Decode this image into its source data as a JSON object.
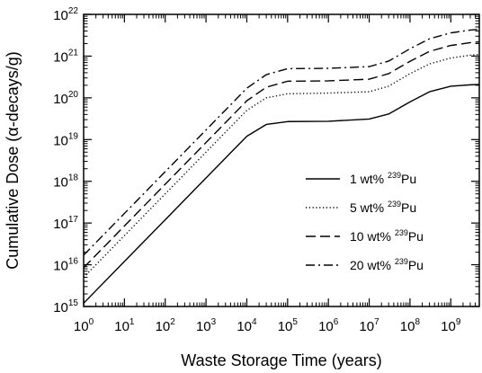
{
  "chart_data": {
    "type": "line",
    "title": "",
    "xlabel": "Waste Storage Time (years)",
    "ylabel": "Cumulative Dose (α-decays/g)",
    "xscale": "log",
    "yscale": "log",
    "xlim": [
      1,
      5000000000.0
    ],
    "ylim": [
      1000000000000000.0,
      1e+22
    ],
    "x_tick_exponents": [
      "0",
      "1",
      "2",
      "3",
      "4",
      "5",
      "6",
      "7",
      "8",
      "9"
    ],
    "y_tick_exponents": [
      "15",
      "16",
      "17",
      "18",
      "19",
      "20",
      "21",
      "22"
    ],
    "tick_base": "10",
    "grid": false,
    "legend_position": "right",
    "x": [
      1,
      10,
      100,
      1000,
      10000,
      30000,
      100000,
      1000000,
      10000000,
      30000000,
      100000000,
      300000000,
      1000000000,
      3000000000,
      5000000000
    ],
    "series": [
      {
        "label": "1 wt% ",
        "isotope_sup": "239",
        "element": "Pu",
        "dash": "solid",
        "values": [
          1200000000000000.0,
          1.2e+16,
          1.2e+17,
          1.2e+18,
          1.2e+19,
          2.3e+19,
          2.7e+19,
          2.75e+19,
          3.1e+19,
          4.1e+19,
          8e+19,
          1.4e+20,
          1.9e+20,
          2.05e+20,
          2.1e+20
        ]
      },
      {
        "label": "5 wt% ",
        "isotope_sup": "239",
        "element": "Pu",
        "dash": "dotted",
        "values": [
          5000000000000000.0,
          5e+16,
          5e+17,
          5e+18,
          5e+19,
          1e+20,
          1.25e+20,
          1.3e+20,
          1.4e+20,
          1.9e+20,
          3.8e+20,
          6.5e+20,
          9e+20,
          1.05e+21,
          1.1e+21
        ]
      },
      {
        "label": "10 wt% ",
        "isotope_sup": "239",
        "element": "Pu",
        "dash": "dashed",
        "values": [
          8500000000000000.0,
          8.5e+16,
          8.5e+17,
          8.5e+18,
          8.5e+19,
          1.8e+20,
          2.5e+20,
          2.55e+20,
          2.8e+20,
          3.8e+20,
          7.5e+20,
          1.3e+21,
          1.8e+21,
          2.1e+21,
          2.2e+21
        ]
      },
      {
        "label": "20 wt% ",
        "isotope_sup": "239",
        "element": "Pu",
        "dash": "dashdot",
        "values": [
          1.7e+16,
          1.7e+17,
          1.7e+18,
          1.7e+19,
          1.7e+20,
          3.6e+20,
          5e+20,
          5.1e+20,
          5.6e+20,
          7.6e+20,
          1.5e+21,
          2.6e+21,
          3.6e+21,
          4.2e+21,
          4.4e+21
        ]
      }
    ]
  }
}
